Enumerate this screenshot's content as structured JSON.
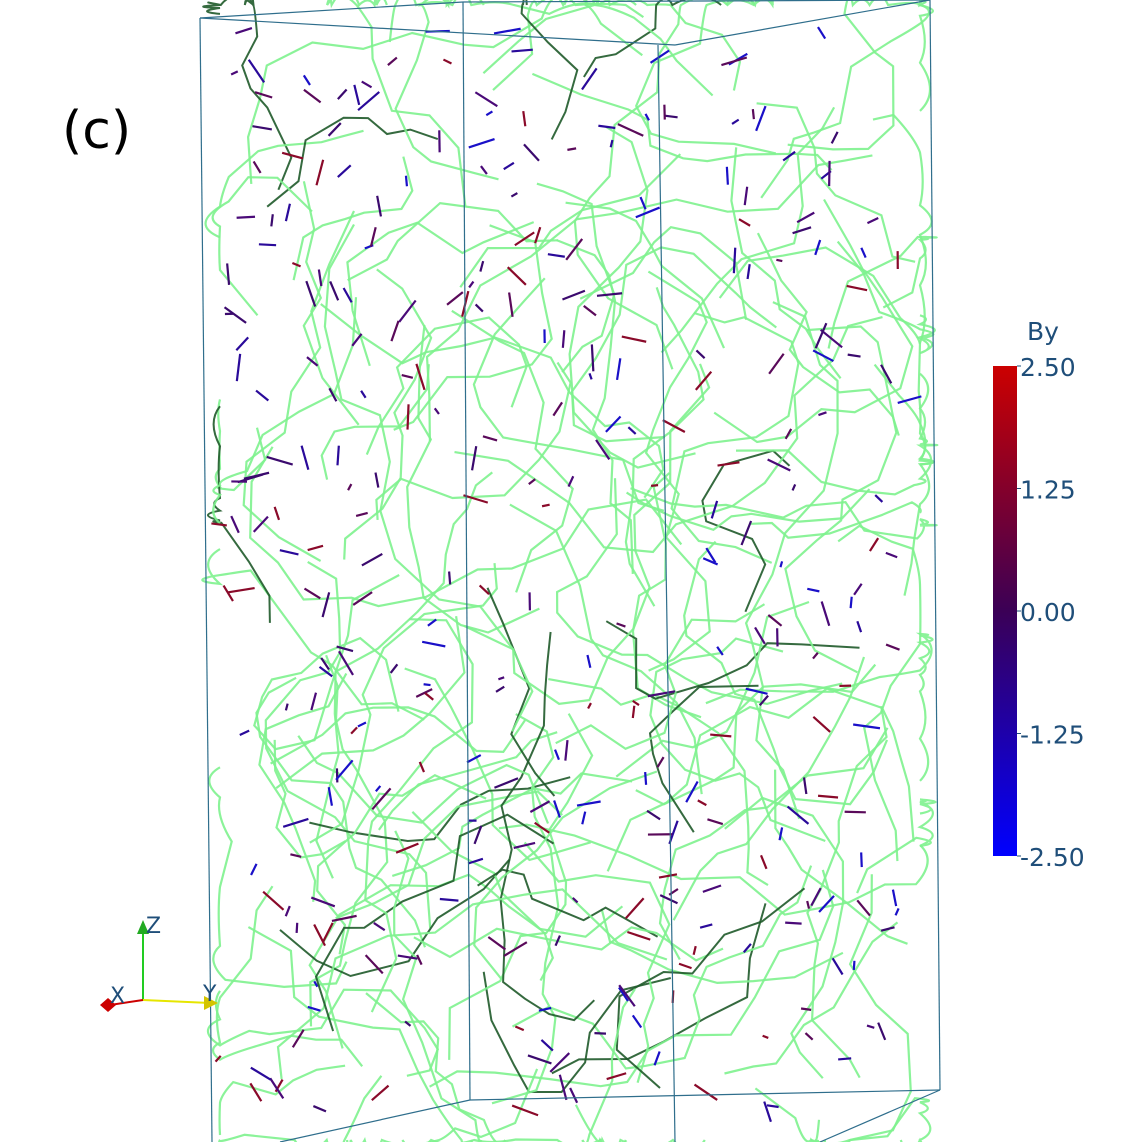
{
  "panel_label": "(c)",
  "colorbar": {
    "title": "By",
    "range": [
      -2.5,
      2.5
    ],
    "ticks": [
      {
        "value": 2.5,
        "label": "2.50"
      },
      {
        "value": 1.25,
        "label": "1.25"
      },
      {
        "value": 0,
        "label": "0.00"
      },
      {
        "value": -1.25,
        "label": "-1.25"
      },
      {
        "value": -2.5,
        "label": "-2.50"
      }
    ]
  },
  "axes_triad": {
    "x": "X",
    "y": "Y",
    "z": "Z"
  }
}
